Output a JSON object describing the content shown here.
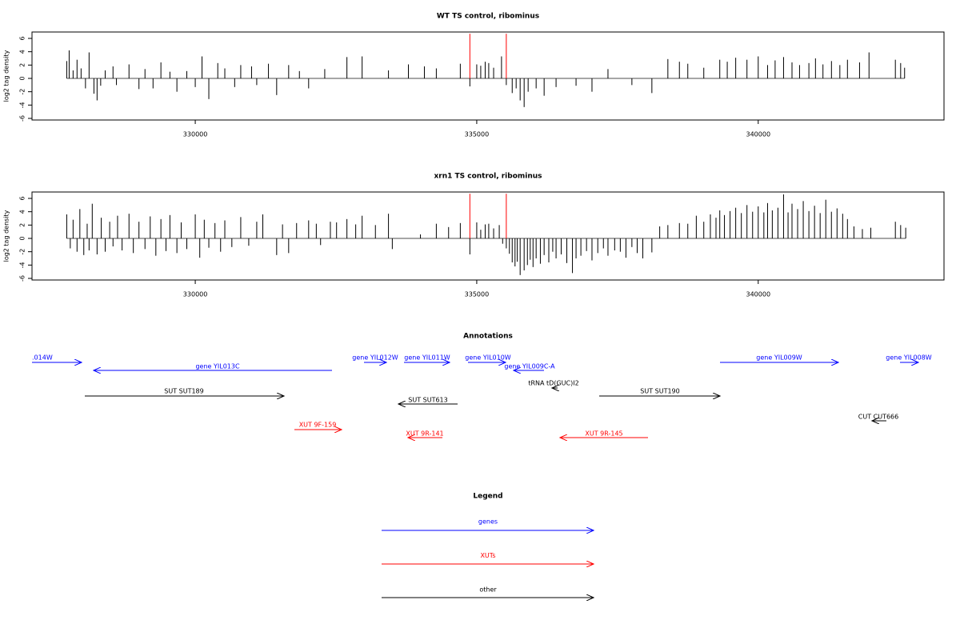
{
  "chart_data": [
    {
      "type": "bar",
      "title": "WT TS control, ribominus",
      "y_label": "log2 tag density",
      "x": [
        327717,
        327760,
        327830,
        327900,
        327972,
        328050,
        328114,
        328200,
        328256,
        328320,
        328400,
        328539,
        328600,
        328823,
        329000,
        329107,
        329250,
        329390,
        329550,
        329674,
        329850,
        330000,
        330120,
        330241,
        330400,
        330525,
        330700,
        330808,
        331000,
        331092,
        331300,
        331446,
        331659,
        331850,
        332014,
        332300,
        332694,
        332964,
        333432,
        333786,
        334070,
        334282,
        334708,
        334878,
        335000,
        335071,
        335150,
        335213,
        335300,
        335440,
        335525,
        335630,
        335700,
        335771,
        335842,
        335913,
        336055,
        336197,
        336409,
        336764,
        337047,
        337331,
        337756,
        338111,
        338395,
        338600,
        338749,
        339033,
        339317,
        339450,
        339600,
        339800,
        340000,
        340166,
        340300,
        340450,
        340600,
        340734,
        340900,
        341017,
        341150,
        341301,
        341450,
        341585,
        341800,
        341968,
        342436,
        342530,
        342600
      ],
      "values": [
        2.6,
        4.2,
        1.2,
        2.8,
        1.5,
        -1.5,
        3.9,
        -2.3,
        -3.3,
        -1.1,
        1.2,
        1.8,
        -1.0,
        2.1,
        -1.6,
        1.4,
        -1.5,
        2.4,
        1.0,
        -2.0,
        1.1,
        -1.3,
        3.3,
        -3.1,
        2.3,
        1.5,
        -1.3,
        2.0,
        1.8,
        -1.0,
        2.2,
        -2.5,
        2.0,
        1.1,
        -1.5,
        1.4,
        3.2,
        3.3,
        1.2,
        2.1,
        1.8,
        1.5,
        2.2,
        -1.2,
        2.1,
        1.9,
        2.5,
        2.3,
        1.6,
        3.3,
        -1.0,
        -2.2,
        -1.5,
        -3.3,
        -4.3,
        -2.0,
        -1.5,
        -2.6,
        -1.3,
        -1.1,
        -2.0,
        1.4,
        -1.0,
        -2.2,
        2.9,
        2.5,
        2.2,
        1.6,
        2.8,
        2.5,
        3.1,
        2.8,
        3.3,
        2.0,
        2.7,
        3.2,
        2.4,
        2.0,
        2.3,
        3.0,
        2.1,
        2.6,
        2.0,
        2.8,
        2.4,
        3.9,
        2.8,
        2.3,
        1.6
      ],
      "color": "#000000",
      "highlight": {
        "x": [
          334878,
          335525
        ],
        "values": [
          6.7,
          6.7
        ],
        "color": "#ff0000"
      },
      "xlim": [
        327100,
        343300
      ],
      "ylim": [
        -6.24,
        6.96
      ],
      "xticks": [
        330000,
        335000,
        340000
      ],
      "yticks": [
        -6,
        -4,
        -2,
        0,
        2,
        4,
        6
      ]
    },
    {
      "type": "bar",
      "title": "xrn1 TS control, ribominus",
      "y_label": "log2 tag density",
      "x": [
        327717,
        327780,
        327830,
        327900,
        327950,
        328020,
        328080,
        328114,
        328170,
        328256,
        328330,
        328400,
        328480,
        328539,
        328620,
        328700,
        328823,
        328900,
        329000,
        329107,
        329200,
        329300,
        329390,
        329480,
        329550,
        329674,
        329750,
        329850,
        330000,
        330080,
        330160,
        330241,
        330350,
        330450,
        330525,
        330650,
        330808,
        330950,
        331092,
        331200,
        331446,
        331550,
        331659,
        331800,
        332014,
        332150,
        332226,
        332400,
        332510,
        332694,
        332850,
        332964,
        333200,
        333432,
        333500,
        334000,
        334282,
        334500,
        334708,
        334878,
        335000,
        335071,
        335150,
        335213,
        335300,
        335400,
        335460,
        335525,
        335580,
        335630,
        335680,
        335720,
        335771,
        335842,
        335900,
        335950,
        336000,
        336055,
        336130,
        336197,
        336280,
        336350,
        336409,
        336500,
        336600,
        336700,
        336764,
        336850,
        336950,
        337047,
        337150,
        337250,
        337331,
        337450,
        337550,
        337650,
        337756,
        337850,
        337950,
        338111,
        338250,
        338395,
        338600,
        338749,
        338900,
        339033,
        339150,
        339250,
        339317,
        339400,
        339500,
        339600,
        339700,
        339800,
        339900,
        340000,
        340100,
        340166,
        340250,
        340350,
        340450,
        340530,
        340600,
        340700,
        340800,
        340900,
        341000,
        341100,
        341200,
        341300,
        341400,
        341500,
        341585,
        341700,
        341850,
        342000,
        342436,
        342530,
        342620
      ],
      "values": [
        3.6,
        -1.5,
        2.8,
        -2.0,
        4.4,
        -2.5,
        2.2,
        -1.8,
        5.2,
        -2.4,
        3.1,
        -2.0,
        2.5,
        -1.2,
        3.4,
        -1.8,
        3.7,
        -2.2,
        2.5,
        -1.6,
        3.3,
        -2.6,
        2.9,
        -1.9,
        3.5,
        -2.2,
        2.4,
        -1.6,
        3.6,
        -2.9,
        2.8,
        -1.4,
        2.3,
        -2.0,
        2.7,
        -1.3,
        3.2,
        -1.1,
        2.5,
        3.6,
        -2.5,
        2.1,
        -2.2,
        2.3,
        2.7,
        2.2,
        -1.0,
        2.5,
        2.4,
        2.9,
        2.1,
        3.4,
        2.0,
        3.7,
        -1.6,
        0.6,
        2.2,
        1.7,
        2.3,
        -2.4,
        2.4,
        1.3,
        2.1,
        2.2,
        1.5,
        2.0,
        -0.8,
        -1.5,
        -2.3,
        -3.6,
        -4.2,
        -3.5,
        -5.5,
        -4.8,
        -4.0,
        -3.2,
        -4.3,
        -3.0,
        -3.8,
        -2.5,
        -3.6,
        -2.0,
        -3.0,
        -2.4,
        -3.7,
        -5.2,
        -3.0,
        -2.6,
        -1.9,
        -3.3,
        -2.2,
        -1.5,
        -2.6,
        -1.8,
        -2.0,
        -2.9,
        -1.3,
        -2.2,
        -3.0,
        -2.1,
        1.8,
        2.0,
        2.3,
        2.2,
        3.4,
        2.5,
        3.6,
        3.1,
        4.2,
        3.5,
        4.1,
        4.6,
        3.8,
        5.0,
        4.0,
        4.8,
        3.9,
        5.3,
        4.2,
        4.6,
        6.6,
        3.9,
        5.2,
        4.4,
        5.6,
        4.1,
        4.9,
        3.8,
        5.8,
        4.0,
        4.5,
        3.7,
        2.9,
        1.8,
        1.4,
        1.6,
        2.5,
        2.0,
        1.6
      ],
      "color": "#000000",
      "highlight": {
        "x": [
          334878,
          335525
        ],
        "values": [
          6.7,
          6.7
        ],
        "color": "#ff0000"
      },
      "xlim": [
        327100,
        343300
      ],
      "ylim": [
        -6.24,
        6.96
      ],
      "xticks": [
        330000,
        335000,
        340000
      ],
      "yticks": [
        -6,
        -4,
        -2,
        0,
        2,
        4,
        6
      ]
    }
  ],
  "annotations": {
    "title": "Annotations",
    "labels": [
      ".014W",
      "gene YIL013C",
      "gene YIL012W",
      "gene YIL011W",
      "gene YIL010W",
      "gene YIL009C-A",
      "gene YIL009W",
      "gene YIL008W",
      "tRNA tD(GUC)I2",
      "SUT SUT189",
      "SUT SUT613",
      "SUT SUT190",
      "CUT CUT666",
      "XUT 9F-159",
      "XUT 9R-141",
      "XUT 9R-145"
    ]
  },
  "legend": {
    "title": "Legend",
    "items": [
      "genes",
      "XUTs",
      "other"
    ]
  }
}
